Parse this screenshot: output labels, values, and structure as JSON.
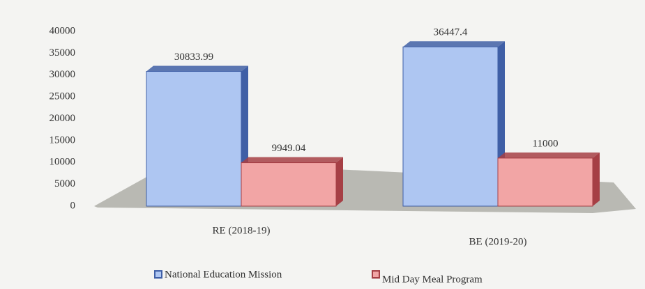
{
  "chart_data": {
    "type": "bar3d",
    "categories": [
      "RE (2018-19)",
      "BE (2019-20)"
    ],
    "series": [
      {
        "name": "National Education Mission",
        "color": "#aec6f2",
        "values": [
          30833.99,
          36447.4
        ]
      },
      {
        "name": "Mid Day Meal Program",
        "color": "#f2a5a5",
        "values": [
          9949.04,
          11000
        ]
      }
    ],
    "ylim": [
      0,
      40000
    ],
    "yticks": [
      0,
      5000,
      10000,
      15000,
      20000,
      25000,
      30000,
      35000,
      40000
    ],
    "legend": "bottom"
  }
}
